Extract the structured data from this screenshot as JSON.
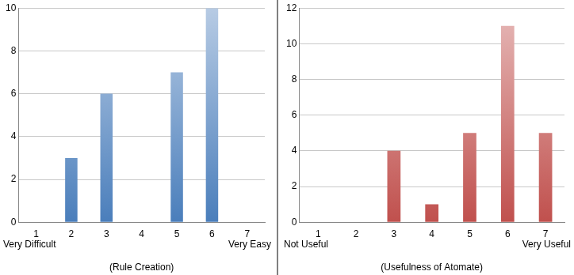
{
  "chart_data": [
    {
      "type": "bar",
      "categories": [
        "1",
        "2",
        "3",
        "4",
        "5",
        "6",
        "7"
      ],
      "values": [
        0,
        3,
        6,
        0,
        7,
        10,
        0
      ],
      "color": "#4a7ebb",
      "ylim": [
        0,
        10
      ],
      "yticks": [
        0,
        2,
        4,
        6,
        8,
        10
      ],
      "x_label": "(Rule Creation)",
      "annotations": [
        "Very Difficult",
        "Very Easy"
      ],
      "grid": true
    },
    {
      "type": "bar",
      "categories": [
        "1",
        "2",
        "3",
        "4",
        "5",
        "6",
        "7"
      ],
      "values": [
        0,
        0,
        4,
        1,
        5,
        11,
        5
      ],
      "color": "#c0504d",
      "ylim": [
        0,
        12
      ],
      "yticks": [
        0,
        2,
        4,
        6,
        8,
        10,
        12
      ],
      "x_label": "(Usefulness of Atomate)",
      "annotations": [
        "Not Useful",
        "Very Useful"
      ],
      "grid": true
    }
  ]
}
